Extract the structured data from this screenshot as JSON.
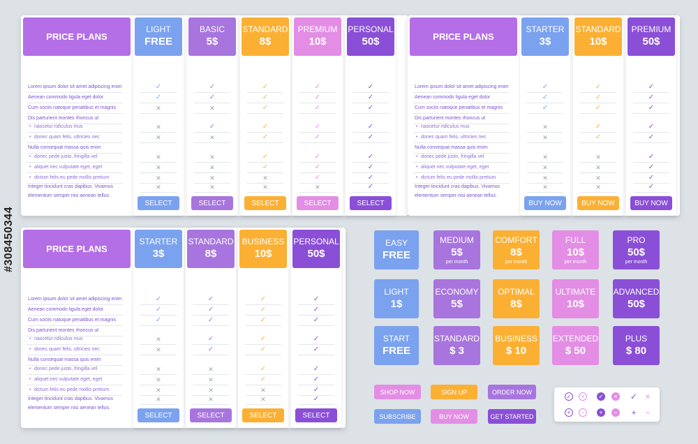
{
  "colors": {
    "blue": "#7ba2ee",
    "purple": "#a775dd",
    "orange": "#fbb034",
    "pink": "#e38ee4",
    "violet": "#8a4fd6",
    "header_main": "#b46ee6",
    "check": "#8a4fd6",
    "cross": "#9aa2ab"
  },
  "watermark": "#308450344",
  "features": [
    {
      "text": "Lorem ipsum dolor sit amet adipiscing enim",
      "sub": false
    },
    {
      "text": "Aenean commodo ligula eget dolor",
      "sub": false
    },
    {
      "text": "Cum sociis natoque penatibus et magnis",
      "sub": false
    },
    {
      "text": "Dis parturient montes rhoncus ut",
      "sub": false
    },
    {
      "text": "nascetur ridiculus mus",
      "sub": true
    },
    {
      "text": "donec quam felis, ultricies nec",
      "sub": true
    },
    {
      "text": "Nulla consequat massa quis enim",
      "sub": false
    },
    {
      "text": "donec pede justo, fringilla vel",
      "sub": true
    },
    {
      "text": "aliquet nec vulputate eget, eget",
      "sub": true
    },
    {
      "text": "dictum felis eu pede mollis pretium",
      "sub": true
    },
    {
      "text": "Integer tincidunt cras dapibus. Vivamus",
      "sub": false
    },
    {
      "text": "elementum semper nisi aenean tellus.",
      "sub": false
    }
  ],
  "table1": {
    "title": "PRICE PLANS",
    "plans": [
      {
        "name": "LIGHT",
        "price": "FREE",
        "color": "blue",
        "button": "SELECT",
        "marks": "vvxxxxxxx"
      },
      {
        "name": "BASIC",
        "price": "5$",
        "color": "purple",
        "button": "SELECT",
        "marks": "vvxvxxxxx"
      },
      {
        "name": "STANDARD",
        "price": "8$",
        "color": "orange",
        "button": "SELECT",
        "marks": "vvvvvvvxx"
      },
      {
        "name": "PREMIUM",
        "price": "10$",
        "color": "pink",
        "button": "SELECT",
        "marks": "vvvvvvvvx"
      },
      {
        "name": "PERSONAL",
        "price": "50$",
        "color": "violet",
        "button": "SELECT",
        "marks": "vvvvvvvvv"
      }
    ]
  },
  "table2": {
    "title": "PRICE PLANS",
    "plans": [
      {
        "name": "STARTER",
        "price": "3$",
        "color": "blue",
        "button": "BUY NOW",
        "marks": "vvvxxxxxx"
      },
      {
        "name": "STANDARD",
        "price": "10$",
        "color": "orange",
        "button": "BUY NOW",
        "marks": "vvvvvxxxx"
      },
      {
        "name": "PREMIUM",
        "price": "50$",
        "color": "violet",
        "button": "BUY NOW",
        "marks": "vvvvvvvvv"
      }
    ]
  },
  "table3": {
    "title": "PRICE PLANS",
    "plans": [
      {
        "name": "STARTER",
        "price": "3$",
        "color": "blue",
        "button": "SELECT",
        "marks": "vvvxxxxxx"
      },
      {
        "name": "STANDARD",
        "price": "8$",
        "color": "purple",
        "button": "SELECT",
        "marks": "vvvvvxxxx"
      },
      {
        "name": "BUSINESS",
        "price": "10$",
        "color": "orange",
        "button": "SELECT",
        "marks": "vvvvvvvxx"
      },
      {
        "name": "PERSONAL",
        "price": "50$",
        "color": "violet",
        "button": "SELECT",
        "marks": "vvvvvvvvv"
      }
    ]
  },
  "tiles": [
    [
      {
        "name": "EASY",
        "price": "FREE",
        "sub": "",
        "color": "blue"
      },
      {
        "name": "MEDIUM",
        "price": "5$",
        "sub": "per month",
        "color": "purple"
      },
      {
        "name": "COMFORT",
        "price": "8$",
        "sub": "per month",
        "color": "orange"
      },
      {
        "name": "FULL",
        "price": "10$",
        "sub": "per month",
        "color": "pink"
      },
      {
        "name": "PRO",
        "price": "50$",
        "sub": "per month",
        "color": "violet"
      }
    ],
    [
      {
        "name": "LIGHT",
        "price": "1$",
        "sub": "",
        "color": "blue"
      },
      {
        "name": "ECONOMY",
        "price": "5$",
        "sub": "",
        "color": "purple"
      },
      {
        "name": "OPTIMAL",
        "price": "8$",
        "sub": "",
        "color": "orange"
      },
      {
        "name": "ULTIMATE",
        "price": "10$",
        "sub": "",
        "color": "pink"
      },
      {
        "name": "ADVANCED",
        "price": "50$",
        "sub": "",
        "color": "violet"
      }
    ],
    [
      {
        "name": "START",
        "price": "FREE",
        "sub": "",
        "color": "blue"
      },
      {
        "name": "STANDARD",
        "price": "$ 3",
        "sub": "",
        "color": "purple"
      },
      {
        "name": "BUSINESS",
        "price": "$ 10",
        "sub": "",
        "color": "orange"
      },
      {
        "name": "EXTENDED",
        "price": "$ 50",
        "sub": "",
        "color": "pink"
      },
      {
        "name": "PLUS",
        "price": "$ 80",
        "sub": "",
        "color": "violet"
      }
    ]
  ],
  "buttons": [
    [
      {
        "label": "SHOP NOW",
        "color": "pink"
      },
      {
        "label": "SIGN UP",
        "color": "orange"
      },
      {
        "label": "ORDER NOW",
        "color": "purple"
      }
    ],
    [
      {
        "label": "SUBSCRIBE",
        "color": "blue"
      },
      {
        "label": "BUY NOW",
        "color": "pink"
      },
      {
        "label": "GET STARTED",
        "color": "violet"
      }
    ]
  ],
  "icons": [
    [
      {
        "name": "check-circle-outline-icon",
        "glyph": "✓",
        "style": "outline"
      },
      {
        "name": "cross-circle-outline-icon",
        "glyph": "×",
        "style": "outline"
      },
      {
        "name": "check-circle-filled-icon",
        "glyph": "✓",
        "style": "filled"
      },
      {
        "name": "cross-circle-filled-icon",
        "glyph": "×",
        "style": "filled-pink"
      },
      {
        "name": "check-icon",
        "glyph": "✓",
        "style": "plain"
      },
      {
        "name": "cross-icon",
        "glyph": "×",
        "style": "plain-pink"
      }
    ],
    [
      {
        "name": "plus-circle-outline-icon",
        "glyph": "+",
        "style": "outline"
      },
      {
        "name": "minus-circle-outline-icon",
        "glyph": "−",
        "style": "outline"
      },
      {
        "name": "plus-circle-filled-icon",
        "glyph": "+",
        "style": "filled"
      },
      {
        "name": "minus-circle-filled-icon",
        "glyph": "−",
        "style": "filled-pink"
      },
      {
        "name": "plus-icon",
        "glyph": "+",
        "style": "plain"
      },
      {
        "name": "minus-icon",
        "glyph": "−",
        "style": "plain-pink"
      }
    ]
  ]
}
